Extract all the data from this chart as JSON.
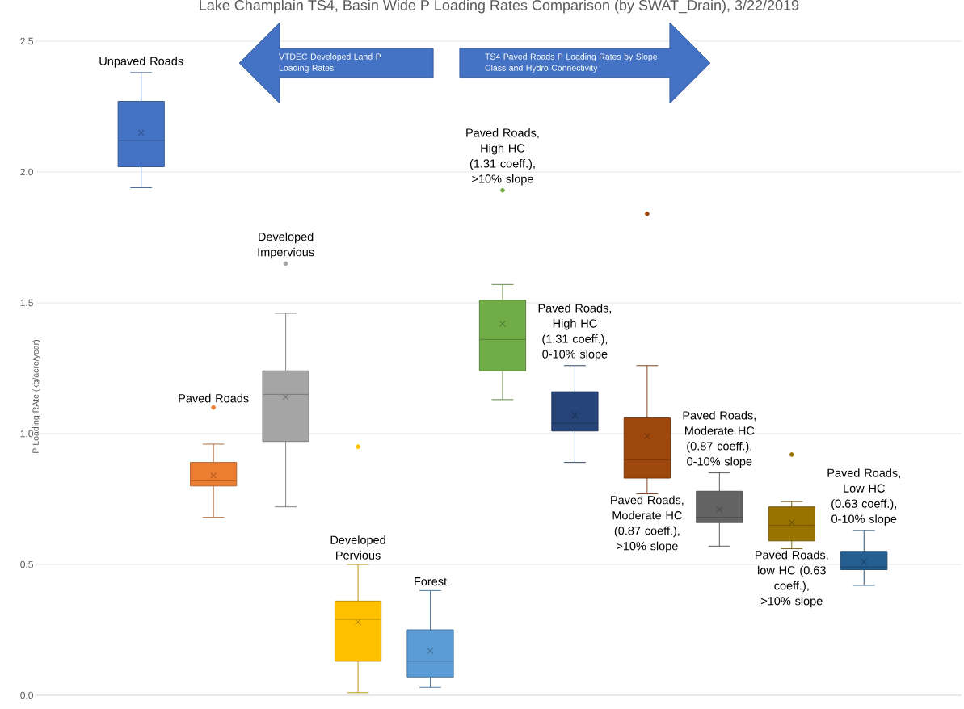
{
  "chart_data": {
    "type": "box",
    "title": "Lake Champlain TS4, Basin Wide P Loading Rates Comparison (by SWAT_Drain), 3/22/2019",
    "ylabel": "P Loading RAte (kg/acre/year)",
    "annotations": [
      "VTDEC Developed Land P Loading Rates",
      "TS4 Paved Roads P Loading Rates by Slope Class and Hydro Connectivity"
    ],
    "categories": [
      "Unpaved Roads",
      "Paved Roads",
      "Developed Impervious",
      "Developed Pervious",
      "Forest",
      "Paved Roads, High HC (1.31 coeff.), >10% slope",
      "Paved Roads, High HC (1.31 coeff.), 0-10% slope",
      "Paved Roads, Moderate HC (0.87 coeff.), >10% slope",
      "Paved Roads, Moderate HC (0.87 coeff.), 0-10% slope",
      "Paved Roads, low HC (0.63 coeff.), >10% slope",
      "Paved Roads, Low HC (0.63 coeff.), 0-10% slope"
    ],
    "colors": [
      "#4472c4",
      "#ed7d31",
      "#a5a5a5",
      "#ffc000",
      "#5b9bd5",
      "#70ad47",
      "#264478",
      "#9e480e",
      "#636363",
      "#997300",
      "#255e91"
    ],
    "boxes": [
      {
        "low": 1.94,
        "q1": 2.02,
        "median": 2.12,
        "q3": 2.27,
        "high": 2.38,
        "mean": 2.15
      },
      {
        "low": 0.68,
        "q1": 0.8,
        "median": 0.82,
        "q3": 0.89,
        "high": 0.96,
        "mean": 0.84,
        "outliers": [
          1.1
        ]
      },
      {
        "low": 0.72,
        "q1": 0.97,
        "median": 1.15,
        "q3": 1.24,
        "high": 1.46,
        "mean": 1.14,
        "outliers": [
          1.65
        ]
      },
      {
        "low": 0.01,
        "q1": 0.13,
        "median": 0.29,
        "q3": 0.36,
        "high": 0.5,
        "mean": 0.28,
        "outliers": [
          0.95
        ]
      },
      {
        "low": 0.03,
        "q1": 0.07,
        "median": 0.13,
        "q3": 0.25,
        "high": 0.4,
        "mean": 0.17
      },
      {
        "low": 1.13,
        "q1": 1.24,
        "median": 1.36,
        "q3": 1.51,
        "high": 1.57,
        "mean": 1.42,
        "outliers": [
          1.93
        ]
      },
      {
        "low": 0.89,
        "q1": 1.01,
        "median": 1.04,
        "q3": 1.16,
        "high": 1.26,
        "mean": 1.07
      },
      {
        "low": 0.77,
        "q1": 0.83,
        "median": 0.9,
        "q3": 1.06,
        "high": 1.26,
        "mean": 0.99,
        "outliers": [
          1.84
        ]
      },
      {
        "low": 0.57,
        "q1": 0.66,
        "median": 0.68,
        "q3": 0.78,
        "high": 0.85,
        "mean": 0.71
      },
      {
        "low": 0.56,
        "q1": 0.59,
        "median": 0.65,
        "q3": 0.72,
        "high": 0.74,
        "mean": 0.66,
        "outliers": [
          0.92
        ]
      },
      {
        "low": 0.42,
        "q1": 0.48,
        "median": 0.49,
        "q3": 0.55,
        "high": 0.63,
        "mean": 0.51
      }
    ],
    "ylim": [
      0,
      2.5
    ],
    "yticks": [
      {
        "value": 0,
        "label": "0.0"
      },
      {
        "value": 0.5,
        "label": "0.5"
      },
      {
        "value": 1,
        "label": "1.0"
      },
      {
        "value": 1.5,
        "label": "1.5"
      },
      {
        "value": 2,
        "label": "2.0"
      },
      {
        "value": 2.5,
        "label": "2.5"
      }
    ],
    "grid": "y"
  }
}
